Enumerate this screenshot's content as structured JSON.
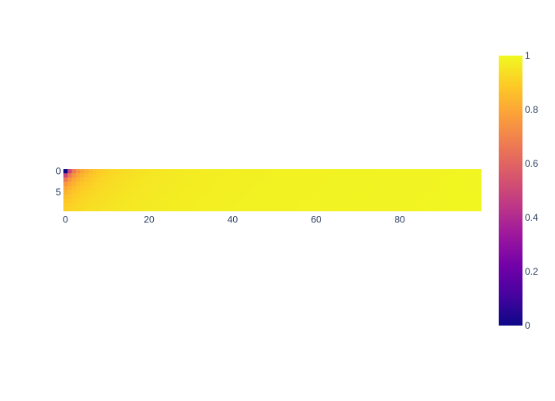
{
  "chart_data": {
    "type": "heatmap",
    "title": "",
    "xlabel": "",
    "ylabel": "",
    "x_range": [
      -0.5,
      99.5
    ],
    "y_range": [
      -0.5,
      9.5
    ],
    "y_reversed": true,
    "aspect": "equal",
    "grid": false,
    "rows": 10,
    "cols": 100,
    "value_formula": "value[i][j] = 1 - 1/(i + j + 1)  (i = row 0..9, j = column 0..99)",
    "x_ticks": [
      0,
      20,
      40,
      60,
      80
    ],
    "x_tick_labels": [
      "0",
      "20",
      "40",
      "60",
      "80"
    ],
    "y_ticks": [
      0,
      5
    ],
    "y_tick_labels": [
      "0",
      "5"
    ],
    "colorbar": {
      "colorscale": "plasma",
      "placement": "right",
      "range": [
        0,
        1
      ],
      "ticks": [
        0,
        0.2,
        0.4,
        0.6,
        0.8,
        1
      ],
      "tick_labels": [
        "0",
        "0.2",
        "0.4",
        "0.6",
        "0.8",
        "1"
      ],
      "stops": [
        [
          0.0,
          "#0d0887"
        ],
        [
          0.111,
          "#46039f"
        ],
        [
          0.222,
          "#7201a8"
        ],
        [
          0.333,
          "#9c179e"
        ],
        [
          0.444,
          "#bd3786"
        ],
        [
          0.556,
          "#d8576b"
        ],
        [
          0.667,
          "#ed7953"
        ],
        [
          0.778,
          "#fb9f3a"
        ],
        [
          0.889,
          "#fdca26"
        ],
        [
          1.0,
          "#f0f921"
        ]
      ]
    }
  }
}
